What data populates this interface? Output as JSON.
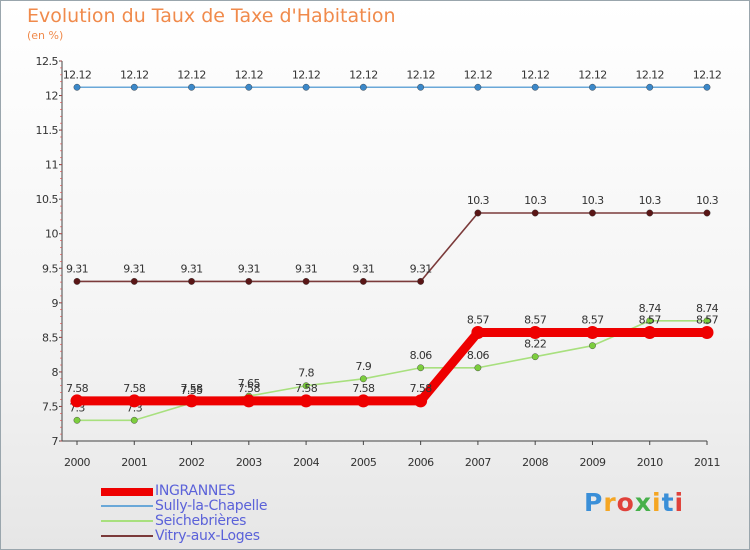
{
  "title": "Evolution du Taux de Taxe d'Habitation",
  "unit": "(en %)",
  "logo": {
    "text": "Proxiti",
    "colors": [
      "#3a8fd8",
      "#f5a623",
      "#e0413a",
      "#46b04a",
      "#f5a623",
      "#3a8fd8",
      "#e0413a"
    ]
  },
  "chart_data": {
    "type": "line",
    "categories": [
      "2000",
      "2001",
      "2002",
      "2003",
      "2004",
      "2005",
      "2006",
      "2007",
      "2008",
      "2009",
      "2010",
      "2011"
    ],
    "ylim": [
      7,
      12.5
    ],
    "yticks": [
      "7",
      "7.5",
      "8",
      "8.5",
      "9",
      "9.5",
      "10",
      "10.5",
      "11",
      "11.5",
      "12",
      "12.5"
    ],
    "grid": false,
    "series": [
      {
        "name": "Sully-la-Chapelle",
        "color": "#6aa8d8",
        "marker": "#3b88c9",
        "values": [
          12.12,
          12.12,
          12.12,
          12.12,
          12.12,
          12.12,
          12.12,
          12.12,
          12.12,
          12.12,
          12.12,
          12.12
        ],
        "labels": [
          "12.12",
          "12.12",
          "12.12",
          "12.12",
          "12.12",
          "12.12",
          "12.12",
          "12.12",
          "12.12",
          "12.12",
          "12.12",
          "12.12"
        ]
      },
      {
        "name": "Vitry-aux-Loges",
        "color": "#7b3a3a",
        "marker": "#5a1616",
        "values": [
          9.31,
          9.31,
          9.31,
          9.31,
          9.31,
          9.31,
          9.31,
          10.3,
          10.3,
          10.3,
          10.3,
          10.3
        ],
        "labels": [
          "9.31",
          "9.31",
          "9.31",
          "9.31",
          "9.31",
          "9.31",
          "9.31",
          "10.3",
          "10.3",
          "10.3",
          "10.3",
          "10.3"
        ]
      },
      {
        "name": "Seichebrières",
        "color": "#a8e07e",
        "marker": "#7ccd3d",
        "values": [
          7.3,
          7.3,
          7.55,
          7.65,
          7.8,
          7.9,
          8.06,
          8.06,
          8.22,
          8.38,
          8.74,
          8.74
        ],
        "labels": [
          "7.3",
          "7.3",
          "7.55",
          "7.65",
          "7.8",
          "7.9",
          "8.06",
          "8.06",
          "8.22",
          "8.38",
          "8.74",
          "8.74"
        ]
      },
      {
        "name": "INGRANNES",
        "color": "#ee0000",
        "marker": "#ee0000",
        "values": [
          7.58,
          7.58,
          7.58,
          7.58,
          7.58,
          7.58,
          7.58,
          8.57,
          8.57,
          8.57,
          8.57,
          8.57
        ],
        "labels": [
          "7.58",
          "7.58",
          "7.58",
          "7.58",
          "7.58",
          "7.58",
          "7.58",
          "8.57",
          "8.57",
          "8.57",
          "8.57",
          "8.57"
        ]
      }
    ],
    "legend_order": [
      "INGRANNES",
      "Sully-la-Chapelle",
      "Seichebrières",
      "Vitry-aux-Loges"
    ]
  }
}
